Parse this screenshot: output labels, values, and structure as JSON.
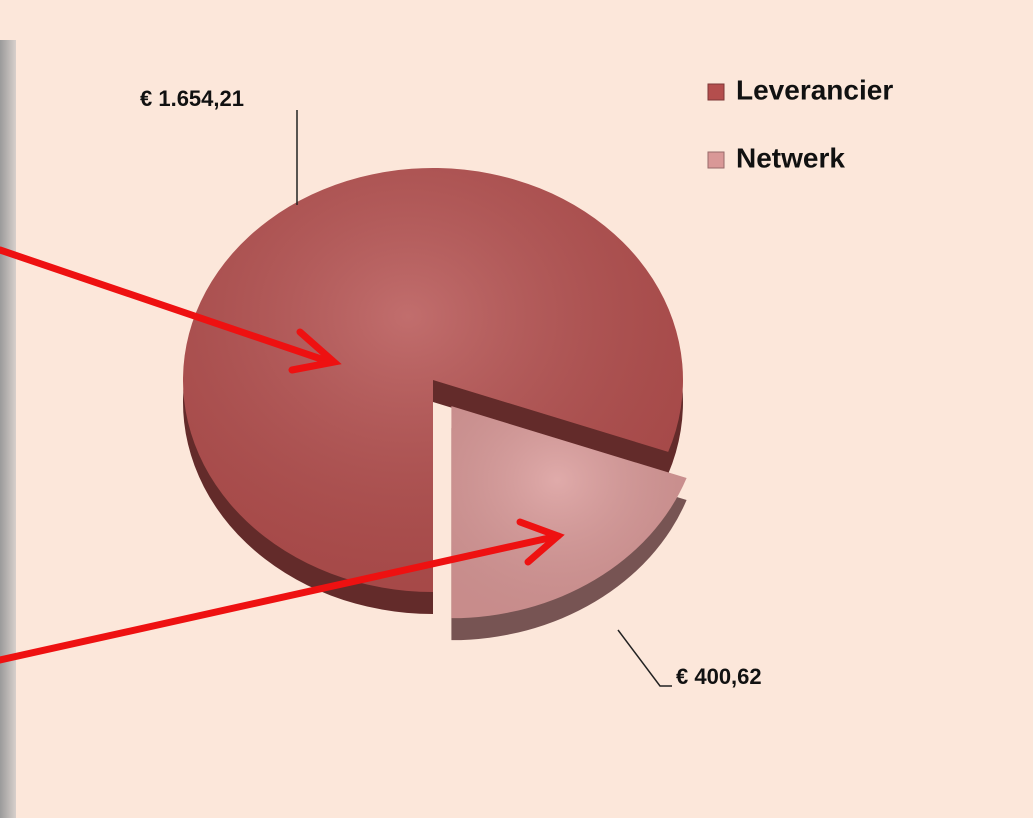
{
  "chart_data": {
    "type": "pie",
    "categories": [
      "Leverancier",
      "Netwerk"
    ],
    "values": [
      1654.21,
      400.62
    ],
    "value_labels": [
      "€ 1.654,21",
      "€ 400,62"
    ],
    "colors": [
      "#b44e4d",
      "#d99897"
    ],
    "legend": "top-right"
  }
}
